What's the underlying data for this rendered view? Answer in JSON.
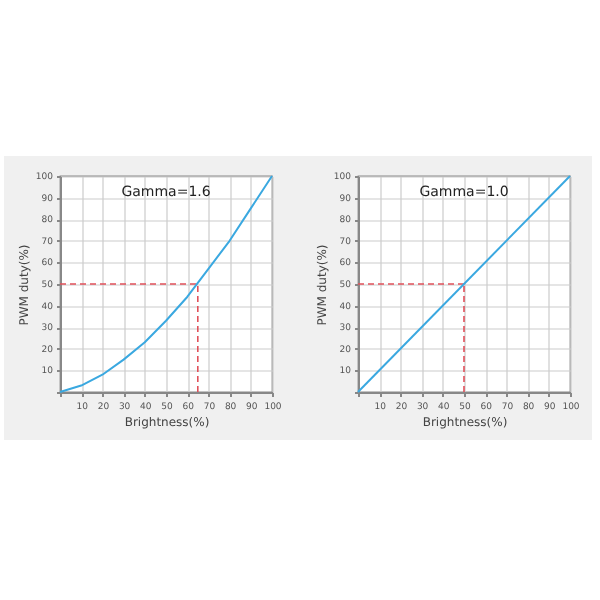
{
  "chart_data": [
    {
      "type": "line",
      "title": "Gamma=1.6",
      "xlabel": "Brightness(%)",
      "ylabel": "PWM duty(%)",
      "x": [
        0,
        10,
        20,
        30,
        40,
        50,
        60,
        70,
        80,
        90,
        100
      ],
      "series": [
        {
          "color": "#3aa8e0",
          "values": [
            0,
            3,
            8,
            15,
            23,
            33,
            44,
            57,
            70,
            85,
            100
          ]
        }
      ],
      "xlim": [
        0,
        100
      ],
      "ylim": [
        0,
        100
      ],
      "xticks": [
        {
          "value": 0,
          "label": null
        },
        10,
        20,
        30,
        40,
        50,
        60,
        70,
        80,
        90,
        100
      ],
      "yticks": [
        {
          "value": 0,
          "label": null
        },
        10,
        20,
        30,
        40,
        50,
        60,
        70,
        80,
        90,
        100
      ],
      "grid": true,
      "ref_lines": [
        {
          "axis": "x",
          "value": 65,
          "color": "#e0505a",
          "line_style": "dashed"
        },
        {
          "axis": "y",
          "value": 50,
          "color": "#e0505a",
          "line_style": "dashed"
        }
      ]
    },
    {
      "type": "line",
      "title": "Gamma=1.0",
      "xlabel": "Brightness(%)",
      "ylabel": "PWM duty(%)",
      "x": [
        0,
        100
      ],
      "series": [
        {
          "color": "#3aa8e0",
          "values": [
            0,
            100
          ]
        }
      ],
      "xlim": [
        0,
        100
      ],
      "ylim": [
        0,
        100
      ],
      "xticks": [
        {
          "value": 0,
          "label": null
        },
        10,
        20,
        30,
        40,
        50,
        60,
        70,
        80,
        90,
        100
      ],
      "yticks": [
        {
          "value": 0,
          "label": null
        },
        10,
        20,
        30,
        40,
        50,
        60,
        70,
        80,
        90,
        100
      ],
      "grid": true,
      "ref_lines": [
        {
          "axis": "x",
          "value": 50,
          "color": "#e0505a",
          "line_style": "dashed"
        },
        {
          "axis": "y",
          "value": 50,
          "color": "#e0505a",
          "line_style": "dashed"
        }
      ]
    }
  ]
}
